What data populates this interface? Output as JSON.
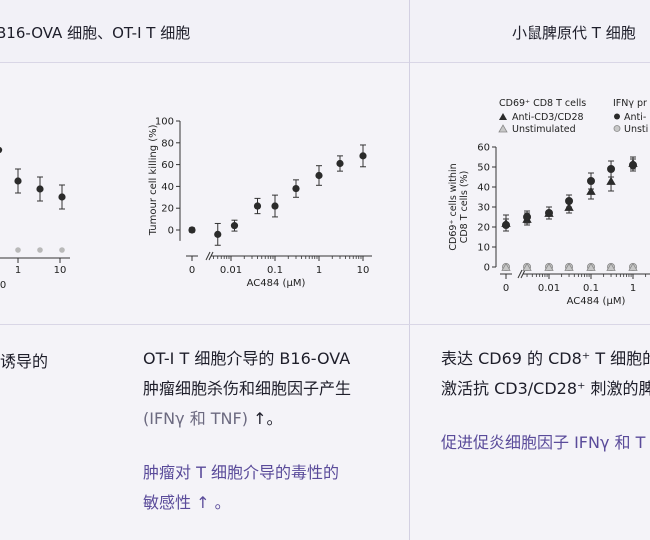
{
  "headers": {
    "left": "B16-OVA 细胞、OT-I T 细胞",
    "right": "小鼠脾原代 T 细胞"
  },
  "left_fragment": "诱导的",
  "chart_partial": {
    "y_tick_visible": "0",
    "x_ticks": [
      "1",
      "10"
    ],
    "means": [
      67,
      59,
      51
    ],
    "baseline": [
      2,
      2,
      2,
      2
    ]
  },
  "chart_data": [
    {
      "type": "scatter",
      "ylabel": "Tumour cell killing (%)",
      "xlabel": "AC484 (μM)",
      "yticks": [
        "0",
        "20",
        "40",
        "60",
        "80",
        "100"
      ],
      "xticks": [
        "0",
        "0.01",
        "0.1",
        "1",
        "10"
      ],
      "ylim": [
        -15,
        100
      ],
      "series": [
        {
          "x": [
            0,
            0.005,
            0.012,
            0.04,
            0.1,
            0.3,
            1,
            3,
            10
          ],
          "y": [
            0,
            -4,
            4,
            22,
            22,
            38,
            50,
            61,
            68
          ],
          "err": [
            2,
            10,
            5,
            7,
            10,
            8,
            9,
            7,
            10
          ]
        }
      ]
    },
    {
      "type": "scatter",
      "ylabel": "CD69⁺ cells within CD8 T cells (%)",
      "xlabel": "AC484 (μM)",
      "yticks": [
        "0",
        "10",
        "20",
        "30",
        "40",
        "50",
        "60"
      ],
      "xticks": [
        "0",
        "0.01",
        "0.1",
        "1"
      ],
      "ylim": [
        0,
        60
      ],
      "legend_title": "CD69⁺ CD8 T cells",
      "legend2_title": "IFNγ pr",
      "legend2_items": [
        "Anti-",
        "Unsti"
      ],
      "series": [
        {
          "name": "Anti-CD3/CD28",
          "x": [
            0,
            0.003,
            0.01,
            0.03,
            0.1,
            0.3,
            1
          ],
          "y": [
            22,
            24,
            27,
            30,
            38,
            43,
            52
          ],
          "err": [
            4,
            3,
            3,
            3,
            4,
            5,
            3
          ]
        },
        {
          "name": "Unstimulated",
          "x": [
            0,
            0.003,
            0.01,
            0.03,
            0.1,
            0.3,
            1
          ],
          "y": [
            0,
            0,
            0,
            0,
            0,
            0,
            0
          ]
        },
        {
          "x": [
            0,
            0.003,
            0.01,
            0.03,
            0.1,
            0.3,
            1
          ],
          "y": [
            21,
            25,
            27,
            33,
            43,
            49,
            51
          ],
          "err": [
            3,
            3,
            3,
            3,
            4,
            4,
            3
          ]
        },
        {
          "x": [
            0,
            0.003,
            0.01,
            0.03,
            0.1,
            0.3,
            1
          ],
          "y": [
            0,
            0,
            0,
            0,
            0,
            0,
            0
          ]
        }
      ]
    }
  ],
  "middle_text": {
    "line1": "OT-I T 细胞介导的 B16-OVA",
    "line2": "肿瘤细胞杀伤和细胞因子产生",
    "line3_muted": "(IFNγ 和 TNF)",
    "line3_arrow": "↑。",
    "accent_line1": "肿瘤对 T 细胞介导的毒性的",
    "accent_line2": "敏感性 ↑ 。"
  },
  "right_text": {
    "line1": "表达 CD69 的 CD8⁺ T 细胞的",
    "line2": "激活抗 CD3/CD28⁺ 刺激的脾",
    "accent_line1": "促进促炎细胞因子 IFNγ 和 T"
  }
}
